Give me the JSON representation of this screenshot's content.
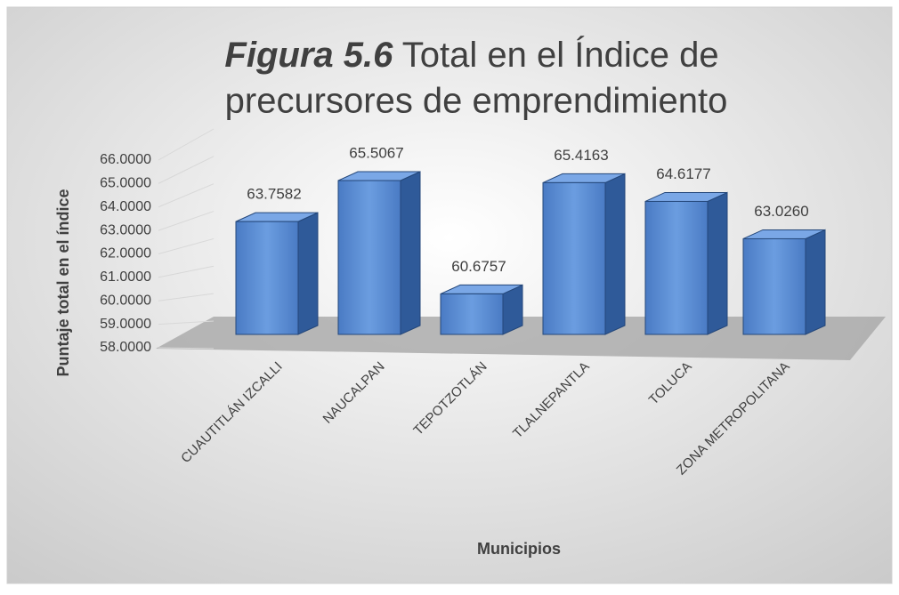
{
  "chart_data": {
    "type": "bar3d",
    "title_label": "Figura 5.6",
    "title": "Total en el Índice de precursores de emprendimiento",
    "x_label": "Municipios",
    "y_label": "Puntaje total en el índice",
    "categories": [
      "CUAUTITLÁN IZCALLI",
      "NAUCALPAN",
      "TEPOTZOTLÁN",
      "TLALNEPANTLA",
      "TOLUCA",
      "ZONA METROPOLITANA"
    ],
    "values": [
      63.7582,
      65.5067,
      60.6757,
      65.4163,
      64.6177,
      63.026
    ],
    "value_labels": [
      "63.7582",
      "65.5067",
      "60.6757",
      "65.4163",
      "64.6177",
      "63.0260"
    ],
    "color": "#5b8fd6",
    "ylim": [
      58,
      66
    ],
    "yticks": [
      {
        "value": 58,
        "label": "58.0000"
      },
      {
        "value": 59,
        "label": "59.0000"
      },
      {
        "value": 60,
        "label": "60.0000"
      },
      {
        "value": 61,
        "label": "61.0000"
      },
      {
        "value": 62,
        "label": "62.0000"
      },
      {
        "value": 63,
        "label": "63.0000"
      },
      {
        "value": 64,
        "label": "64.0000"
      },
      {
        "value": 65,
        "label": "65.0000"
      },
      {
        "value": 66,
        "label": "66.0000"
      }
    ],
    "grid": true
  }
}
